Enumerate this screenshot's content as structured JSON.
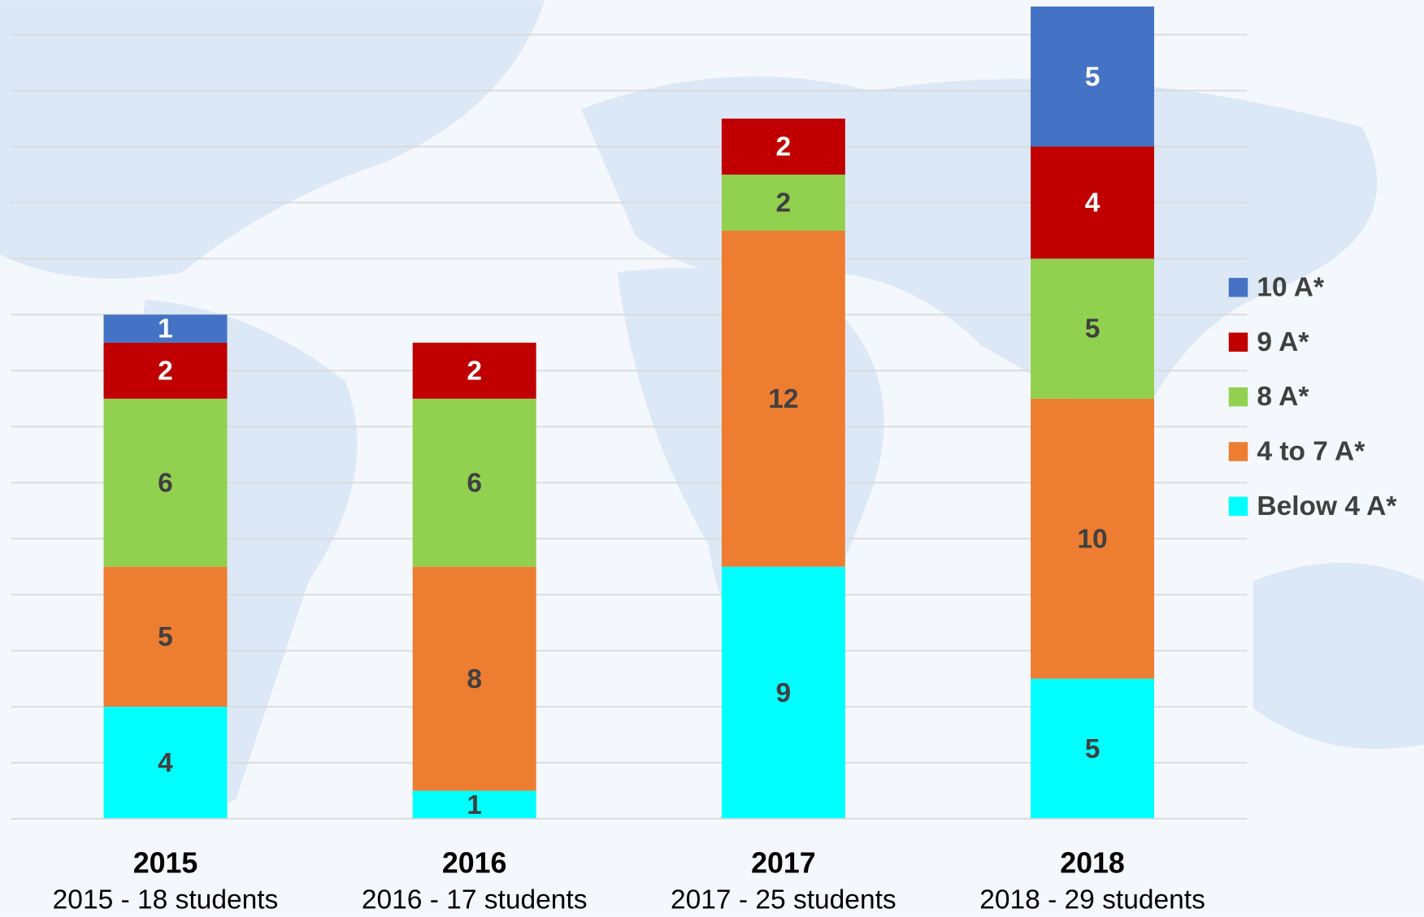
{
  "chart_data": {
    "type": "stacked_bar",
    "categories": [
      "2015",
      "2016",
      "2017",
      "2018"
    ],
    "category_details": [
      "2015 - 18 students",
      "2016 - 17 students",
      "2017 - 25 students",
      "2018 - 29 students"
    ],
    "series": [
      {
        "name": "Below 4 A*",
        "color": "#00ffff",
        "label_color": "#404040",
        "values": [
          4,
          1,
          9,
          5
        ]
      },
      {
        "name": "4 to 7 A*",
        "color": "#ed7d31",
        "label_color": "#404040",
        "values": [
          5,
          8,
          12,
          10
        ]
      },
      {
        "name": "8 A*",
        "color": "#92d050",
        "label_color": "#404040",
        "values": [
          6,
          6,
          2,
          5
        ]
      },
      {
        "name": "9 A*",
        "color": "#c00000",
        "label_color": "#ffffff",
        "values": [
          2,
          2,
          2,
          4
        ]
      },
      {
        "name": "10 A*",
        "color": "#4472c4",
        "label_color": "#ffffff",
        "values": [
          1,
          null,
          null,
          5
        ]
      }
    ],
    "ylim": [
      0,
      29
    ],
    "yticks": [
      0,
      2,
      4,
      6,
      8,
      10,
      12,
      14,
      16,
      18,
      20,
      22,
      24,
      26,
      28
    ],
    "grid": true,
    "legend": "right"
  }
}
